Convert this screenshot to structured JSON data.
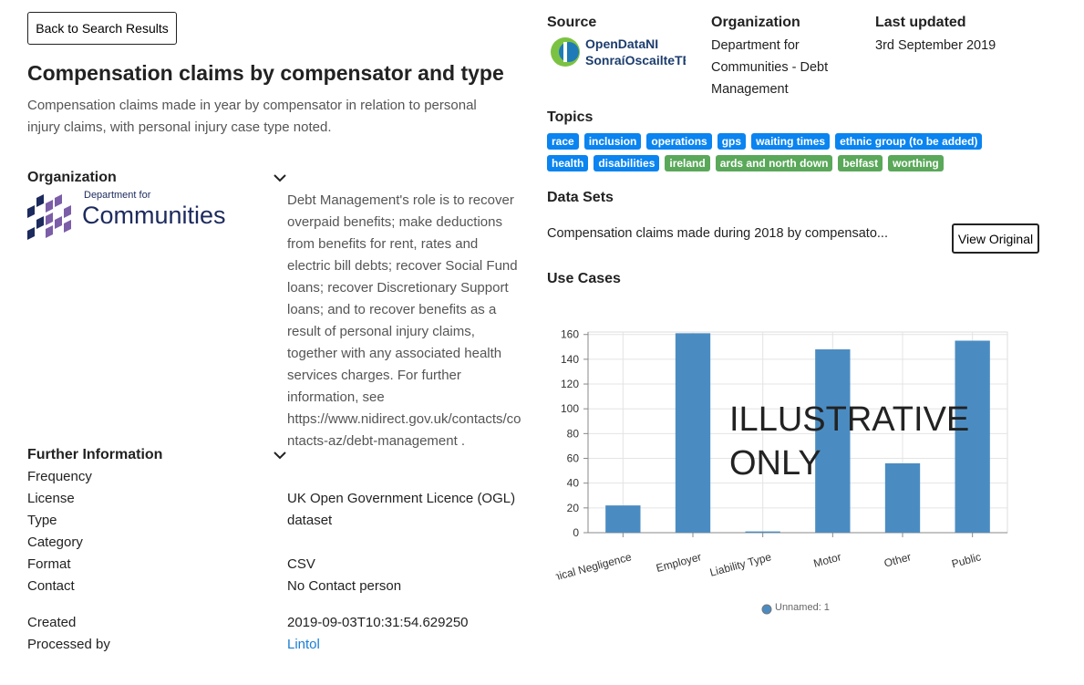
{
  "back_button": "Back to Search Results",
  "title": "Compensation claims by compensator and type",
  "description": "Compensation claims made in year by compensator in relation to personal injury claims, with personal injury case type noted.",
  "organization": {
    "heading": "Organization",
    "logo": {
      "small": "Department for",
      "large": "Communities"
    },
    "text": "Debt Management's role is to recover overpaid benefits; make deductions from benefits for rent, rates and electric bill debts; recover Social Fund loans; recover Discretionary Support loans; and to recover benefits as a result of personal injury claims, together with any associated health services charges. For further information, see https://www.nidirect.gov.uk/contacts/contacts-az/debt-management ."
  },
  "further_information": {
    "heading": "Further Information",
    "rows": [
      {
        "label": "Frequency"
      },
      {
        "label": "License",
        "value": "UK Open Government Licence (OGL)"
      },
      {
        "label": "Type",
        "value": "dataset"
      },
      {
        "label": "Category"
      },
      {
        "label": "Format",
        "value": "CSV"
      },
      {
        "label": "Contact",
        "value": "No Contact person"
      },
      {
        "label": "Created",
        "value": "2019-09-03T10:31:54.629250"
      },
      {
        "label": "Processed by",
        "value": "Lintol",
        "link": true
      }
    ]
  },
  "source": {
    "heading": "Source",
    "logo": {
      "line1": "OpenDataNI",
      "line2": "SonraíOscailteTÉ"
    }
  },
  "meta_organization": {
    "heading": "Organization",
    "value": "Department for Communities - Debt Management"
  },
  "last_updated": {
    "heading": "Last updated",
    "value": "3rd September 2019"
  },
  "topics": {
    "heading": "Topics",
    "tags": [
      {
        "label": "race",
        "color": "#0a84f0"
      },
      {
        "label": "inclusion",
        "color": "#0a84f0"
      },
      {
        "label": "operations",
        "color": "#0a84f0"
      },
      {
        "label": "gps",
        "color": "#0a84f0"
      },
      {
        "label": "waiting times",
        "color": "#0a84f0"
      },
      {
        "label": "ethnic group (to be added)",
        "color": "#0a84f0"
      },
      {
        "label": "health",
        "color": "#0a84f0"
      },
      {
        "label": "disabilities",
        "color": "#0a84f0"
      },
      {
        "label": "ireland",
        "color": "#5aa85a"
      },
      {
        "label": "ards and north down",
        "color": "#5aa85a"
      },
      {
        "label": "belfast",
        "color": "#5aa85a"
      },
      {
        "label": "worthing",
        "color": "#5aa85a"
      }
    ]
  },
  "data_sets": {
    "heading": "Data Sets",
    "item": "Compensation claims made during 2018 by compensato...",
    "button": "View Original"
  },
  "use_cases": {
    "heading": "Use Cases"
  },
  "chart_data": {
    "type": "bar",
    "watermark": "ILLUSTRATIVE ONLY",
    "categories": [
      "Clinical Negligence",
      "Employer",
      "Liability Type",
      "Motor",
      "Other",
      "Public"
    ],
    "series": [
      {
        "name": "Unnamed: 1",
        "color": "#4a8cc2",
        "values": [
          22,
          161,
          1,
          148,
          56,
          155
        ]
      }
    ],
    "ylim": [
      0,
      162
    ],
    "yticks": [
      0,
      20,
      40,
      60,
      80,
      100,
      120,
      140,
      160
    ],
    "grid": true
  }
}
